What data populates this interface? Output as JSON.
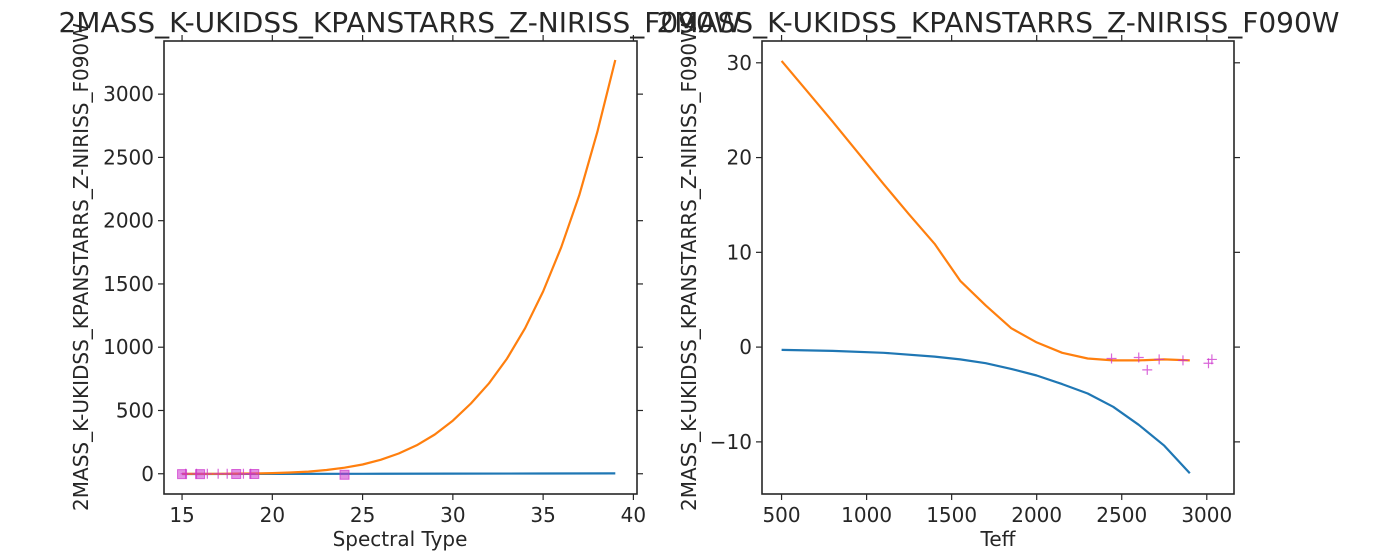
{
  "chart_data": [
    {
      "type": "line",
      "title": "2MASS_K-UKIDSS_KPANSTARRS_Z-NIRISS_F090W",
      "xlabel": "Spectral Type",
      "ylabel": "2MASS_K-UKIDSS_KPANSTARRS_Z-NIRISS_F090W",
      "xlim": [
        14,
        40.2
      ],
      "ylim": [
        -160,
        3420
      ],
      "xticks": [
        15,
        20,
        25,
        30,
        35,
        40
      ],
      "yticks": [
        0,
        500,
        1000,
        1500,
        2000,
        2500,
        3000
      ],
      "series": [
        {
          "color": "#1f77b4",
          "x": [
            15,
            20,
            25,
            30,
            35,
            39
          ],
          "y": [
            -2,
            -1,
            0,
            1,
            2,
            3
          ]
        },
        {
          "color": "#ff7f0e",
          "x": [
            15,
            16,
            17,
            18,
            19,
            20,
            21,
            22,
            23,
            24,
            25,
            26,
            27,
            28,
            29,
            30,
            31,
            32,
            33,
            34,
            35,
            36,
            37,
            38,
            39
          ],
          "y": [
            0,
            0,
            0,
            1,
            2,
            5,
            10,
            17,
            30,
            48,
            73,
            110,
            160,
            225,
            310,
            420,
            555,
            715,
            910,
            1150,
            1440,
            1790,
            2200,
            2700,
            3270
          ]
        }
      ],
      "markers": {
        "squares": {
          "color": "#cc33cc",
          "points": [
            [
              15,
              -3
            ],
            [
              16,
              -3
            ],
            [
              18,
              -2
            ],
            [
              19,
              -2
            ],
            [
              24,
              -8
            ]
          ]
        },
        "plus": {
          "color": "#cc33cc",
          "points": [
            [
              15.2,
              0
            ],
            [
              15.8,
              0
            ],
            [
              16.4,
              0
            ],
            [
              17,
              0
            ],
            [
              17.5,
              0
            ],
            [
              18.4,
              0
            ],
            [
              18.8,
              0
            ]
          ]
        }
      }
    },
    {
      "type": "line",
      "title": "2MASS_K-UKIDSS_KPANSTARRS_Z-NIRISS_F090W",
      "xlabel": "Teff",
      "ylabel": "2MASS_K-UKIDSS_KPANSTARRS_Z-NIRISS_F090W",
      "xlim": [
        385,
        3160
      ],
      "ylim": [
        -15.5,
        32.3
      ],
      "xticks": [
        500,
        1000,
        1500,
        2000,
        2500,
        3000
      ],
      "yticks": [
        -10,
        0,
        10,
        20,
        30
      ],
      "series": [
        {
          "color": "#1f77b4",
          "x": [
            500,
            800,
            1100,
            1400,
            1550,
            1700,
            1850,
            2000,
            2150,
            2300,
            2450,
            2600,
            2750,
            2900
          ],
          "y": [
            -0.3,
            -0.4,
            -0.6,
            -1.0,
            -1.3,
            -1.7,
            -2.3,
            -3.0,
            -3.9,
            -4.9,
            -6.3,
            -8.2,
            -10.4,
            -13.3
          ]
        },
        {
          "color": "#ff7f0e",
          "x": [
            500,
            650,
            800,
            950,
            1100,
            1250,
            1400,
            1550,
            1700,
            1850,
            2000,
            2150,
            2300,
            2450,
            2600,
            2750,
            2900
          ],
          "y": [
            30.2,
            27.0,
            23.8,
            20.5,
            17.2,
            14.0,
            10.9,
            7.0,
            4.4,
            2.0,
            0.5,
            -0.6,
            -1.2,
            -1.4,
            -1.4,
            -1.3,
            -1.4
          ]
        }
      ],
      "markers": {
        "plus": {
          "color": "#cc33cc",
          "points": [
            [
              2440,
              -1.2
            ],
            [
              2600,
              -1.1
            ],
            [
              2650,
              -2.4
            ],
            [
              2720,
              -1.3
            ],
            [
              2860,
              -1.4
            ],
            [
              3010,
              -1.7
            ],
            [
              3030,
              -1.3
            ]
          ]
        }
      }
    }
  ]
}
